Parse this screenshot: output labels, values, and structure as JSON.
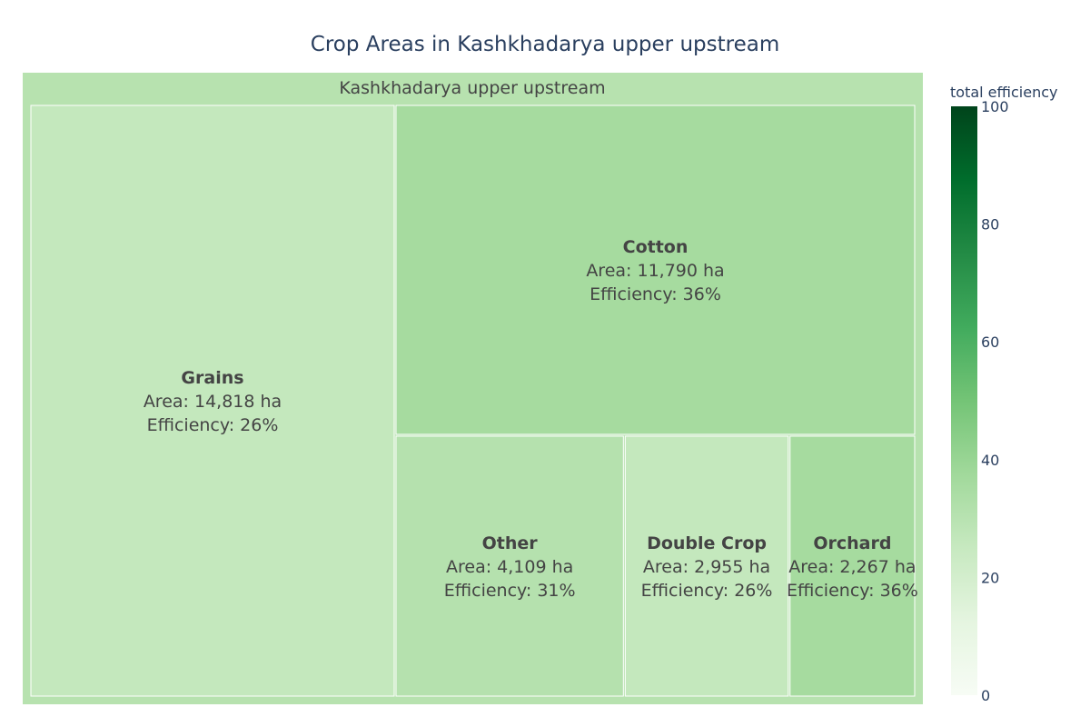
{
  "chart_data": {
    "type": "treemap",
    "title": "Crop Areas in Kashkhadarya upper upstream",
    "root": "Kashkhadarya upper upstream",
    "items": [
      {
        "name": "Grains",
        "area_ha": 14818,
        "area_text": "Area: 14,818 ha",
        "efficiency": 26,
        "efficiency_text": "Efficiency: 26%"
      },
      {
        "name": "Cotton",
        "area_ha": 11790,
        "area_text": "Area: 11,790 ha",
        "efficiency": 36,
        "efficiency_text": "Efficiency: 36%"
      },
      {
        "name": "Other",
        "area_ha": 4109,
        "area_text": "Area: 4,109 ha",
        "efficiency": 31,
        "efficiency_text": "Efficiency: 31%"
      },
      {
        "name": "Double Crop",
        "area_ha": 2955,
        "area_text": "Area: 2,955 ha",
        "efficiency": 26,
        "efficiency_text": "Efficiency: 26%"
      },
      {
        "name": "Orchard",
        "area_ha": 2267,
        "area_text": "Area: 2,267 ha",
        "efficiency": 36,
        "efficiency_text": "Efficiency: 36%"
      }
    ],
    "colorbar": {
      "title": "total efficiency",
      "range": [
        0,
        100
      ],
      "ticks": [
        "0",
        "20",
        "40",
        "60",
        "80",
        "100"
      ],
      "colorscale": "Greens",
      "root_color": "#b7e2af"
    }
  }
}
